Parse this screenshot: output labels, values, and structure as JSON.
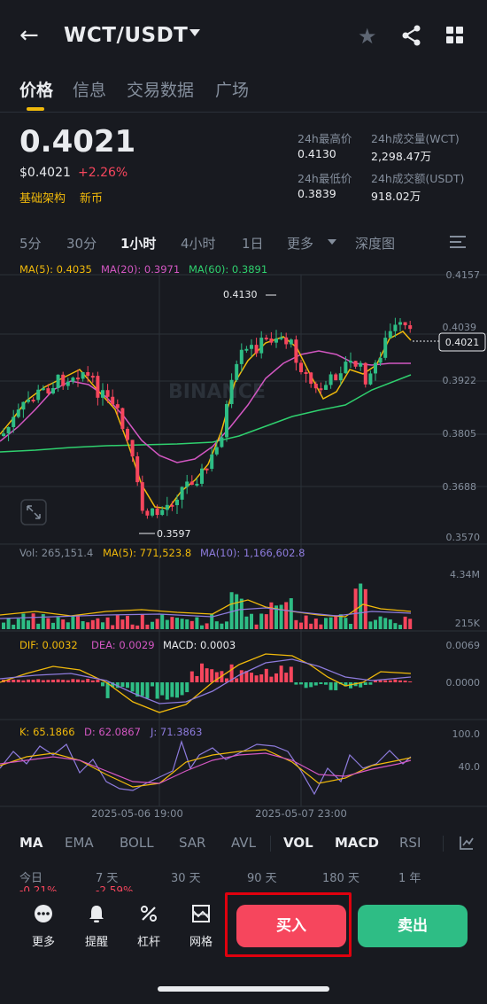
{
  "header": {
    "back_icon": "arrow-left-icon",
    "pair": "WCT/USDT",
    "favorite_icon": "star-icon",
    "share_icon": "share-icon",
    "menu_icon": "grid-icon"
  },
  "tabs": [
    {
      "label": "价格",
      "active": true
    },
    {
      "label": "信息",
      "active": false
    },
    {
      "label": "交易数据",
      "active": false
    },
    {
      "label": "广场",
      "active": false
    }
  ],
  "price": {
    "last": "0.4021",
    "usd": "$0.4021",
    "change": "+2.26%",
    "tags": [
      "基础架构",
      "新币"
    ]
  },
  "stats": {
    "high_label": "24h最高价",
    "high": "0.4130",
    "vol_label": "24h成交量(WCT)",
    "vol": "2,298.47万",
    "low_label": "24h最低价",
    "low": "0.3839",
    "amt_label": "24h成交额(USDT)",
    "amt": "918.02万"
  },
  "intervals": [
    {
      "label": "5分",
      "active": false
    },
    {
      "label": "30分",
      "active": false
    },
    {
      "label": "1小时",
      "active": true
    },
    {
      "label": "4小时",
      "active": false
    },
    {
      "label": "1日",
      "active": false
    },
    {
      "label": "更多",
      "active": false
    },
    {
      "label": "深度图",
      "active": false
    }
  ],
  "chart_data": {
    "type": "candlestick",
    "watermark": "BINANCE",
    "ma_legend": {
      "ma5": "MA(5): 0.4035",
      "ma20": "MA(20): 0.3971",
      "ma60": "MA(60): 0.3891"
    },
    "price_axis": [
      "0.4157",
      "0.4039",
      "0.3922",
      "0.3805",
      "0.3688",
      "0.3570"
    ],
    "ylim": [
      0.357,
      0.4157
    ],
    "high_marker": "0.4130",
    "low_marker": "0.3597",
    "last_price_label": "0.4021",
    "volume_legend": {
      "vol": "Vol: 265,151.4",
      "ma5": "MA(5): 771,523.8",
      "ma10": "MA(10): 1,166,602.8"
    },
    "volume_axis": [
      "4.34M",
      "215K"
    ],
    "macd_legend": {
      "dif": "DIF: 0.0032",
      "dea": "DEA: 0.0029",
      "macd": "MACD: 0.0003"
    },
    "macd_axis": [
      "0.0069",
      "0.0000"
    ],
    "kdj_legend": {
      "k": "K: 65.1866",
      "d": "D: 62.0867",
      "j": "J: 71.3863"
    },
    "kdj_axis": [
      "100.0",
      "40.0"
    ],
    "x_labels": [
      "2025-05-06 19:00",
      "2025-05-07 23:00"
    ],
    "colors": {
      "up": "#2ebd85",
      "down": "#f6465d",
      "ma5": "#f0b90b",
      "ma20": "#d357c2",
      "ma60": "#2fd06e",
      "macd_dea": "#8d7bdc"
    }
  },
  "indicators": [
    {
      "label": "MA",
      "active": true
    },
    {
      "label": "EMA",
      "active": false
    },
    {
      "label": "BOLL",
      "active": false
    },
    {
      "label": "SAR",
      "active": false
    },
    {
      "label": "AVL",
      "active": false
    },
    {
      "label": "VOL",
      "active": true
    },
    {
      "label": "MACD",
      "active": true
    },
    {
      "label": "RSI",
      "active": false
    }
  ],
  "periods": [
    {
      "label": "今日",
      "value": "-0.21%"
    },
    {
      "label": "7 天",
      "value": "-2.59%"
    },
    {
      "label": "30 天",
      "value": ""
    },
    {
      "label": "90 天",
      "value": ""
    },
    {
      "label": "180 天",
      "value": ""
    },
    {
      "label": "1 年",
      "value": ""
    }
  ],
  "bottom": {
    "more": "更多",
    "alert": "提醒",
    "leverage": "杠杆",
    "grid": "网格",
    "buy": "买入",
    "sell": "卖出"
  }
}
